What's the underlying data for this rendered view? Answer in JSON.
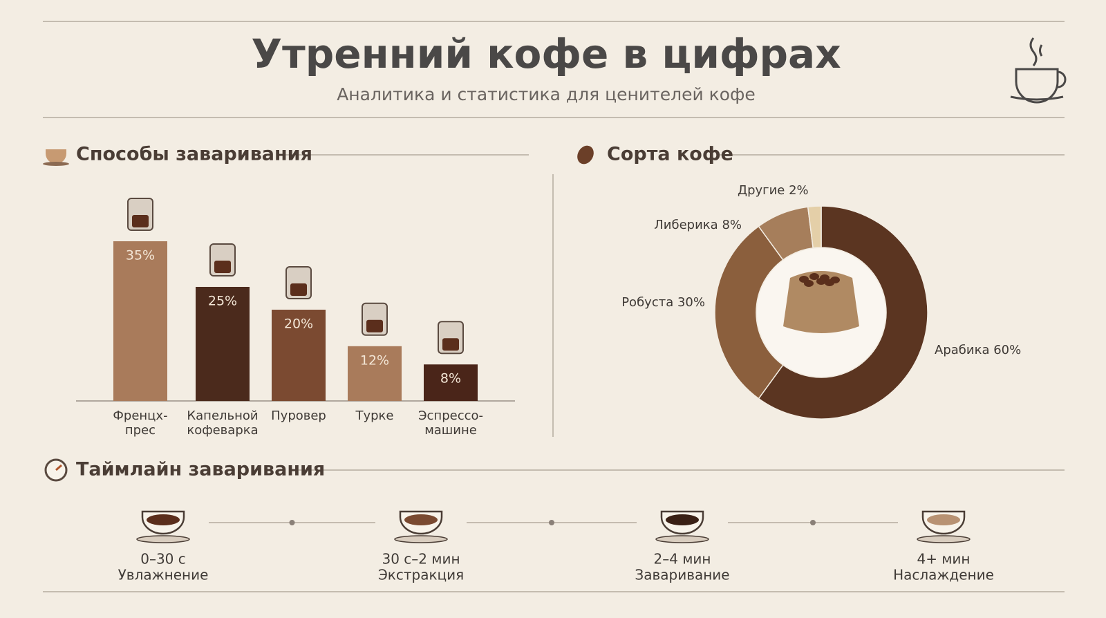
{
  "header": {
    "title": "Утренний кофе в цифрах",
    "subtitle": "Аналитика и статистика для ценителей кофе"
  },
  "chart_data": [
    {
      "type": "bar",
      "title": "Способы заваривания",
      "categories": [
        "Френцх-\nпрес",
        "Капельной\nкофеварка",
        "Пуровер",
        "Турке",
        "Эспрессо-\nмашине"
      ],
      "values": [
        35,
        25,
        20,
        12,
        8
      ],
      "value_labels": [
        "35%",
        "25%",
        "20%",
        "12%",
        "8%"
      ],
      "colors": [
        "#a97b5b",
        "#4b2a1c",
        "#7b4a31",
        "#a97b5b",
        "#4a2519"
      ]
    },
    {
      "type": "pie",
      "title": "Сорта кофе",
      "categories": [
        "Арабика",
        "Робуста",
        "Либерика",
        "Другие"
      ],
      "values": [
        60,
        30,
        8,
        2
      ],
      "value_labels": [
        "60%",
        "30%",
        "8%",
        "2%"
      ],
      "colors": [
        "#5b3521",
        "#8b5f3d",
        "#a67e5b",
        "#e4cfa8"
      ]
    }
  ],
  "timeline": {
    "title": "Таймлайн заваривания",
    "steps": [
      {
        "time": "0–30 с",
        "label": "Увлажнение"
      },
      {
        "time": "30 с–2 мин",
        "label": "Экстракция"
      },
      {
        "time": "2–4 мин",
        "label": "Заваривание"
      },
      {
        "time": "4+ мин",
        "label": "Наслаждение"
      }
    ]
  }
}
